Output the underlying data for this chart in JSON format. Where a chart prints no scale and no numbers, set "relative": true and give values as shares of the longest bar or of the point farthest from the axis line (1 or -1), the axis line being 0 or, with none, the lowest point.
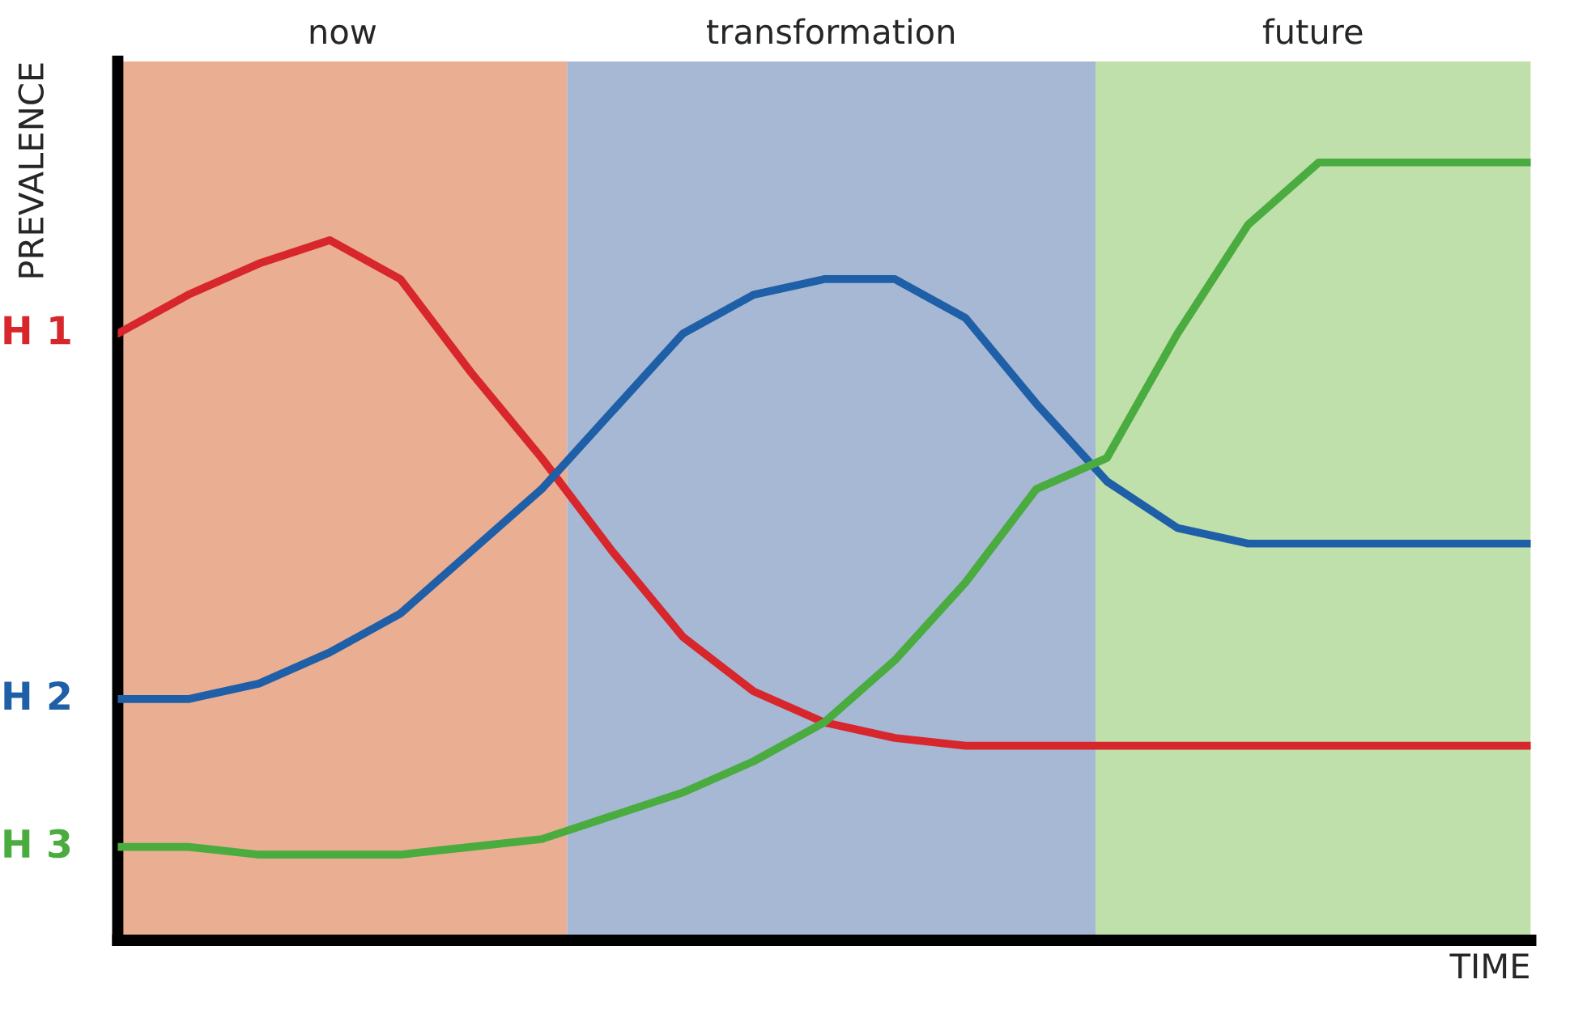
{
  "chart_data": {
    "type": "line",
    "relative": true,
    "ylabel": "PREVALENCE",
    "xlabel": "TIME",
    "categories": [
      null,
      null,
      null,
      null,
      null,
      null,
      null,
      null,
      null,
      null,
      null,
      null,
      null,
      null,
      null,
      null,
      null,
      null,
      null,
      null,
      null
    ],
    "series": [
      {
        "name": "H 1",
        "color": "#d7262c",
        "values": [
          0.78,
          0.83,
          0.87,
          0.9,
          0.85,
          0.73,
          0.62,
          0.5,
          0.39,
          0.32,
          0.28,
          0.26,
          0.25,
          0.25,
          0.25,
          0.25,
          0.25,
          0.25,
          0.25,
          0.25,
          0.25
        ]
      },
      {
        "name": "H 2",
        "color": "#1f5fa8",
        "values": [
          0.31,
          0.31,
          0.33,
          0.37,
          0.42,
          0.5,
          0.58,
          0.68,
          0.78,
          0.83,
          0.85,
          0.85,
          0.8,
          0.69,
          0.59,
          0.53,
          0.51,
          0.51,
          0.51,
          0.51,
          0.51
        ]
      },
      {
        "name": "H 3",
        "color": "#4aab3f",
        "values": [
          0.12,
          0.12,
          0.11,
          0.11,
          0.11,
          0.12,
          0.13,
          0.16,
          0.19,
          0.23,
          0.28,
          0.36,
          0.46,
          0.58,
          0.62,
          0.78,
          0.92,
          1.0,
          1.0,
          1.0,
          1.0
        ]
      }
    ],
    "annotations": [
      "now",
      "transformation",
      "future"
    ]
  }
}
